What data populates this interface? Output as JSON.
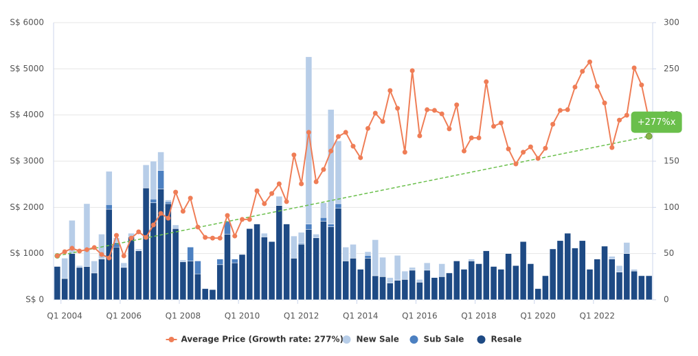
{
  "chart_data": {
    "type": "combo",
    "categories": [
      null,
      "Q1 2004",
      null,
      null,
      null,
      null,
      null,
      null,
      null,
      "Q1 2006",
      null,
      null,
      null,
      null,
      null,
      null,
      null,
      "Q1 2008",
      null,
      null,
      null,
      null,
      null,
      null,
      null,
      "Q1 2010",
      null,
      null,
      null,
      null,
      null,
      null,
      null,
      "Q1 2012",
      null,
      null,
      null,
      null,
      null,
      null,
      null,
      "Q1 2014",
      null,
      null,
      null,
      null,
      null,
      null,
      null,
      "Q1 2016",
      null,
      null,
      null,
      null,
      null,
      null,
      null,
      "Q1 2018",
      null,
      null,
      null,
      null,
      null,
      null,
      null,
      "Q1 2020",
      null,
      null,
      null,
      null,
      null,
      null,
      null,
      "Q1 2022",
      null,
      null,
      null,
      null,
      null,
      null,
      null
    ],
    "series": [
      {
        "name": "Average Price (Growth rate: 277%)",
        "type": "line",
        "axis": "y",
        "color": "#ef7d56",
        "values": [
          950,
          1040,
          1115,
          1055,
          1085,
          1130,
          980,
          905,
          1395,
          950,
          1335,
          1470,
          1350,
          1620,
          1870,
          1765,
          2330,
          1915,
          2200,
          1575,
          1350,
          1335,
          1335,
          1825,
          1380,
          1740,
          1740,
          2360,
          2080,
          2300,
          2510,
          2125,
          3135,
          2510,
          3625,
          2555,
          2820,
          3220,
          3535,
          3625,
          3325,
          3075,
          3710,
          4040,
          3860,
          4530,
          4145,
          3195,
          4960,
          3550,
          4115,
          4100,
          4025,
          3700,
          4220,
          3220,
          3505,
          3505,
          4720,
          3755,
          3830,
          3265,
          2940,
          3195,
          3310,
          3060,
          3280,
          3800,
          4100,
          4115,
          4605,
          4945,
          5150,
          4620,
          4260,
          3295,
          3890,
          3995,
          5020,
          4650,
          3900
        ]
      },
      {
        "name": "New Sale",
        "type": "bar",
        "axis": "y2",
        "color": "#b7cde8",
        "values": [
          0,
          22,
          36,
          2,
          68,
          13,
          27,
          36,
          5,
          5,
          4,
          2,
          25,
          41,
          20,
          2,
          4,
          2,
          0,
          0,
          0,
          0,
          0,
          0,
          0,
          0,
          0,
          0,
          4,
          0,
          10,
          0,
          24,
          12,
          181,
          4,
          16,
          124,
          68,
          15,
          15,
          0,
          4,
          39,
          21,
          6,
          27,
          9,
          3,
          3,
          8,
          0,
          14,
          0,
          0,
          0,
          2,
          0,
          0,
          0,
          0,
          0,
          0,
          0,
          0,
          0,
          0,
          0,
          0,
          0,
          0,
          0,
          0,
          0,
          0,
          3,
          7,
          12,
          2,
          0,
          0
        ]
      },
      {
        "name": "Sub Sale",
        "type": "bar",
        "axis": "y2",
        "color": "#4c80c1",
        "values": [
          0,
          0,
          0,
          0,
          0,
          0,
          0,
          5,
          5,
          0,
          0,
          0,
          0,
          4,
          20,
          2,
          0,
          0,
          15,
          14,
          0,
          0,
          6,
          14,
          4,
          0,
          0,
          0,
          0,
          0,
          0,
          0,
          0,
          1,
          6,
          0,
          4,
          3,
          5,
          0,
          0,
          0,
          3,
          0,
          0,
          0,
          0,
          0,
          0,
          0,
          0,
          0,
          0,
          0,
          0,
          0,
          0,
          0,
          0,
          0,
          0,
          0,
          0,
          0,
          0,
          0,
          0,
          0,
          0,
          0,
          0,
          0,
          0,
          0,
          0,
          0,
          0,
          0,
          0,
          0,
          0
        ]
      },
      {
        "name": "Resale",
        "type": "bar",
        "axis": "y2",
        "color": "#1e4a84",
        "values": [
          36,
          23,
          50,
          35,
          36,
          29,
          44,
          98,
          57,
          35,
          68,
          53,
          121,
          105,
          120,
          104,
          77,
          41,
          42,
          28,
          12,
          11,
          38,
          71,
          40,
          49,
          77,
          82,
          68,
          63,
          102,
          82,
          45,
          60,
          76,
          67,
          85,
          79,
          99,
          42,
          45,
          33,
          45,
          26,
          25,
          18,
          21,
          22,
          32,
          19,
          32,
          24,
          25,
          29,
          42,
          33,
          42,
          39,
          53,
          36,
          33,
          50,
          37,
          63,
          39,
          12,
          26,
          55,
          64,
          72,
          56,
          64,
          33,
          44,
          58,
          44,
          30,
          50,
          31,
          26,
          26
        ]
      }
    ],
    "trend": {
      "values": [
        950,
        3540
      ],
      "color": "#6abf4b",
      "label": "+277%x"
    },
    "ylim": [
      0,
      6000
    ],
    "yticks": [
      {
        "value": 0,
        "label": "S$ 0"
      },
      {
        "value": 1000,
        "label": "S$ 1000"
      },
      {
        "value": 2000,
        "label": "S$ 2000"
      },
      {
        "value": 3000,
        "label": "S$ 3000"
      },
      {
        "value": 4000,
        "label": "S$ 4000"
      },
      {
        "value": 5000,
        "label": "S$ 5000"
      },
      {
        "value": 6000,
        "label": "S$ 6000"
      }
    ],
    "y2lim": [
      0,
      300
    ],
    "y2ticks": [
      0,
      50,
      100,
      150,
      200,
      250,
      300
    ],
    "grid": true,
    "legend": "bottom"
  }
}
